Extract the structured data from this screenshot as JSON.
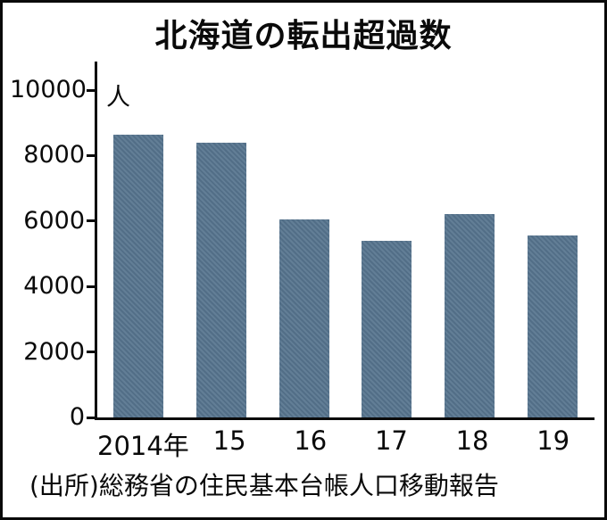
{
  "title": "北海道の転出超過数",
  "unit_label": "人",
  "source": "(出所)総務省の住民基本台帳人口移動報告",
  "chart_data": {
    "type": "bar",
    "title": "北海道の転出超過数",
    "categories": [
      "2014年",
      "15",
      "16",
      "17",
      "18",
      "19"
    ],
    "values": [
      8650,
      8400,
      6050,
      5400,
      6200,
      5550
    ],
    "xlabel": "",
    "ylabel": "人",
    "ylim": [
      0,
      10000
    ],
    "yticks": [
      0,
      2000,
      4000,
      6000,
      8000,
      10000
    ],
    "bar_color": "#56748e",
    "axis_color": "#0a0a0a",
    "grid": false,
    "legend": false
  }
}
